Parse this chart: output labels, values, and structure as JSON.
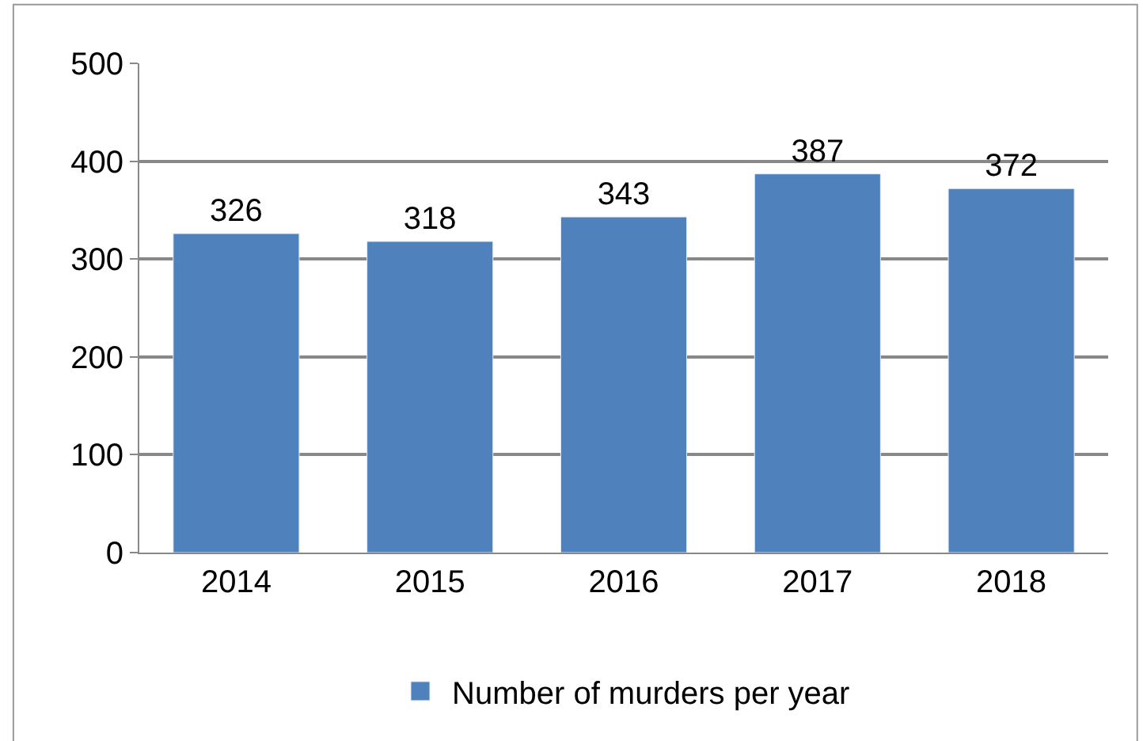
{
  "chart_data": {
    "type": "bar",
    "categories": [
      "2014",
      "2015",
      "2016",
      "2017",
      "2018"
    ],
    "series": [
      {
        "name": "Number of murders per year",
        "color": "#4f81bd",
        "values": [
          326,
          318,
          343,
          387,
          372
        ]
      }
    ],
    "ylim": [
      0,
      500
    ],
    "yticks": [
      0,
      100,
      200,
      300,
      400,
      500
    ],
    "grid": "y",
    "legend": "bottom",
    "data_labels": true
  }
}
